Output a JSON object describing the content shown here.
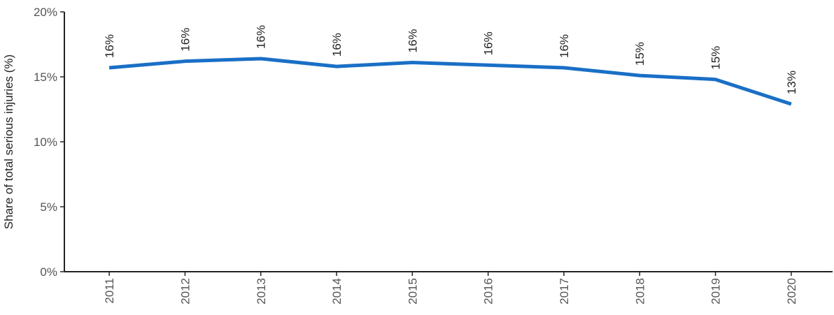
{
  "chart_data": {
    "type": "line",
    "y_label": "Share of total serious injuries (%)",
    "categories": [
      "2011",
      "2012",
      "2013",
      "2014",
      "2015",
      "2016",
      "2017",
      "2018",
      "2019",
      "2020"
    ],
    "series": [
      {
        "color": "#1a6fc6",
        "values": [
          15.7,
          16.2,
          16.4,
          15.8,
          16.1,
          15.9,
          15.7,
          15.1,
          14.8,
          12.9
        ],
        "value_labels": [
          "16%",
          "16%",
          "16%",
          "16%",
          "16%",
          "16%",
          "16%",
          "15%",
          "15%",
          "13%"
        ]
      }
    ],
    "ylim": [
      0,
      20
    ],
    "yticks": [
      {
        "value": 0,
        "label": "0%"
      },
      {
        "value": 5,
        "label": "5%"
      },
      {
        "value": 10,
        "label": "10%"
      },
      {
        "value": 15,
        "label": "15%"
      },
      {
        "value": 20,
        "label": "20%"
      }
    ],
    "grid": false
  }
}
